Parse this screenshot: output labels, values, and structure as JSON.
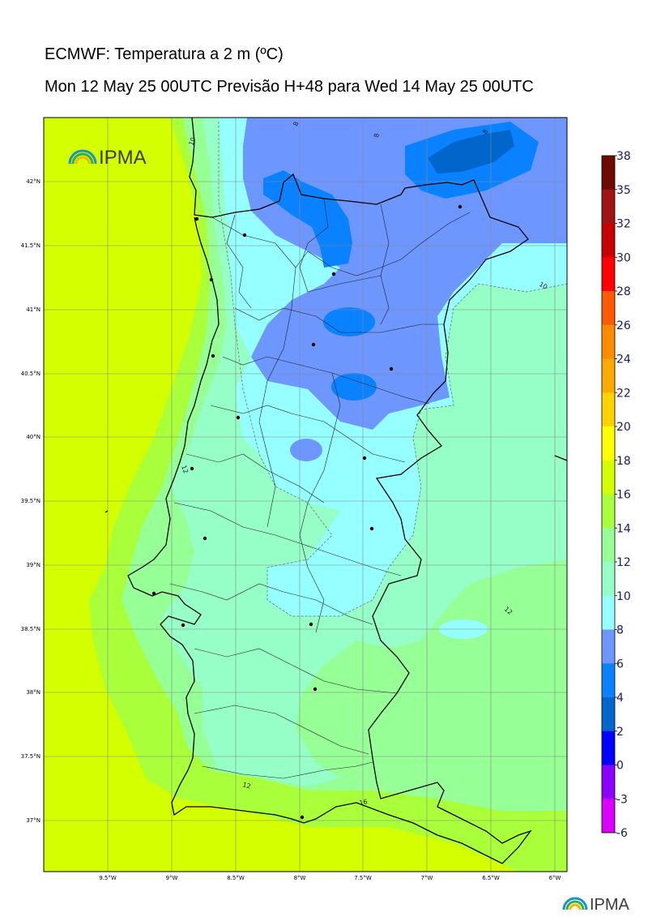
{
  "header": {
    "title": "ECMWF: Temperatura a 2 m (ºC)",
    "subtitle": "Mon 12 May 25 00UTC Previsão H+48 para Wed 14 May 25 00UTC"
  },
  "logo": {
    "text": "IPMA"
  },
  "map": {
    "latitude_labels": [
      "42°N",
      "41.5°N",
      "41°N",
      "40.5°N",
      "40°N",
      "39.5°N",
      "39°N",
      "38.5°N",
      "38°N",
      "37.5°N",
      "37°N"
    ],
    "longitude_labels": [
      "9.5°W",
      "9°W",
      "8.5°W",
      "8°W",
      "7.5°W",
      "7°W",
      "6.5°W",
      "6°W"
    ],
    "contour_labels": [
      "8",
      "8",
      "8",
      "10",
      "10",
      "12",
      "12",
      "12",
      "16"
    ],
    "colors": {
      "ocean_16_18": "#d4ff00",
      "land_14_16": "#a8ff3a",
      "land_12_14": "#96ff96",
      "land_10_12": "#96ffc8",
      "land_8_10": "#96ffff",
      "land_6_8": "#6e96ff",
      "land_4_6": "#0a82ff",
      "land_2_4": "#0066cc"
    }
  },
  "colorbar": {
    "labels": [
      "38",
      "35",
      "32",
      "30",
      "28",
      "26",
      "24",
      "22",
      "20",
      "18",
      "16",
      "14",
      "12",
      "10",
      "8",
      "6",
      "4",
      "2",
      "0",
      "-3",
      "-6"
    ],
    "colors": [
      "#6e0a00",
      "#a01414",
      "#c80000",
      "#ff0000",
      "#ff5a00",
      "#ff8c00",
      "#ffaa00",
      "#ffd200",
      "#ffff00",
      "#d4ff00",
      "#a8ff3a",
      "#96ff96",
      "#96ffc8",
      "#96ffff",
      "#6e96ff",
      "#0a82ff",
      "#0066cc",
      "#0000ff",
      "#8c00ff",
      "#dc00ff"
    ]
  },
  "footer_logo": {
    "text": "IPMA"
  }
}
